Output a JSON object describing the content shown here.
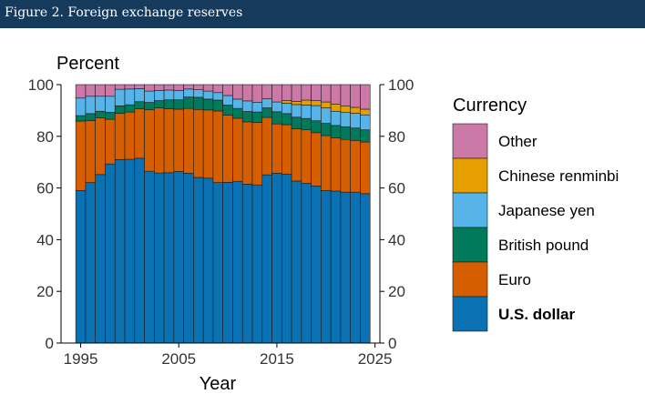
{
  "figure_title": "Figure 2. Foreign exchange reserves",
  "colors": {
    "header_bg": "#163a5c",
    "U.S. dollar": "#0a72b2",
    "Euro": "#d55e00",
    "British pound": "#007a5a",
    "Japanese yen": "#56b4e9",
    "Chinese renminbi": "#e69f00",
    "Other": "#cc79a7"
  },
  "chart_data": {
    "type": "bar",
    "stacked": true,
    "ylabel_top": "Percent",
    "xlabel": "Year",
    "ylim": [
      0,
      100
    ],
    "xlim": [
      1993,
      2025.5
    ],
    "y_ticks": [
      "0",
      "20",
      "40",
      "60",
      "80",
      "100"
    ],
    "x_ticks": [
      "1995",
      "2005",
      "2015",
      "2025"
    ],
    "y_axis_right": true,
    "grid": false,
    "legend_title": "Currency",
    "legend_placement": "right",
    "legend": [
      "Other",
      "Chinese renminbi",
      "Japanese yen",
      "British pound",
      "Euro",
      "U.S. dollar"
    ],
    "categories": [
      1995,
      1996,
      1997,
      1998,
      1999,
      2000,
      2001,
      2002,
      2003,
      2004,
      2005,
      2006,
      2007,
      2008,
      2009,
      2010,
      2011,
      2012,
      2013,
      2014,
      2015,
      2016,
      2017,
      2018,
      2019,
      2020,
      2021,
      2022,
      2023,
      2024
    ],
    "series": [
      {
        "name": "U.S. dollar",
        "values": [
          59.0,
          62.1,
          65.2,
          69.3,
          71.0,
          71.1,
          71.5,
          66.5,
          65.8,
          65.9,
          66.4,
          65.7,
          64.1,
          63.8,
          62.1,
          62.2,
          62.6,
          61.5,
          61.2,
          65.1,
          65.7,
          65.4,
          62.7,
          61.8,
          60.8,
          59.0,
          58.8,
          58.4,
          58.4,
          57.8
        ]
      },
      {
        "name": "Euro",
        "values": [
          26.9,
          24.0,
          21.9,
          17.3,
          17.9,
          18.3,
          19.2,
          23.8,
          25.2,
          24.8,
          24.1,
          25.1,
          26.3,
          26.4,
          27.7,
          26.0,
          24.4,
          24.1,
          24.2,
          22.2,
          19.1,
          19.1,
          20.2,
          20.7,
          20.6,
          21.3,
          20.6,
          20.4,
          20.0,
          20.0
        ]
      },
      {
        "name": "British pound",
        "values": [
          2.1,
          2.7,
          2.6,
          2.7,
          2.9,
          2.8,
          2.7,
          2.8,
          2.8,
          3.4,
          3.6,
          4.4,
          4.7,
          4.2,
          4.2,
          3.9,
          3.8,
          4.0,
          4.0,
          3.7,
          4.7,
          4.3,
          4.5,
          4.4,
          4.6,
          4.7,
          4.8,
          4.9,
          4.8,
          4.7
        ]
      },
      {
        "name": "Japanese yen",
        "values": [
          6.8,
          6.7,
          5.8,
          6.2,
          6.4,
          6.1,
          5.0,
          4.4,
          3.9,
          3.8,
          3.6,
          3.1,
          2.9,
          3.1,
          2.9,
          3.7,
          3.6,
          4.1,
          3.8,
          3.5,
          3.8,
          4.0,
          4.9,
          5.2,
          5.9,
          6.0,
          5.5,
          5.5,
          5.7,
          5.8
        ]
      },
      {
        "name": "Chinese renminbi",
        "values": [
          0,
          0,
          0,
          0,
          0,
          0,
          0,
          0,
          0,
          0,
          0,
          0,
          0,
          0,
          0,
          0,
          0,
          0,
          0,
          0,
          0,
          1.1,
          1.2,
          1.9,
          1.9,
          2.3,
          2.8,
          2.6,
          2.3,
          2.2
        ]
      },
      {
        "name": "Other",
        "values": [
          5.2,
          4.5,
          4.5,
          4.5,
          1.8,
          1.7,
          1.6,
          2.5,
          2.3,
          2.1,
          2.3,
          1.7,
          2.0,
          2.5,
          3.1,
          4.2,
          5.6,
          6.3,
          6.8,
          5.5,
          6.7,
          6.1,
          6.5,
          6.0,
          6.2,
          6.7,
          7.5,
          8.2,
          8.8,
          9.5
        ]
      }
    ]
  }
}
